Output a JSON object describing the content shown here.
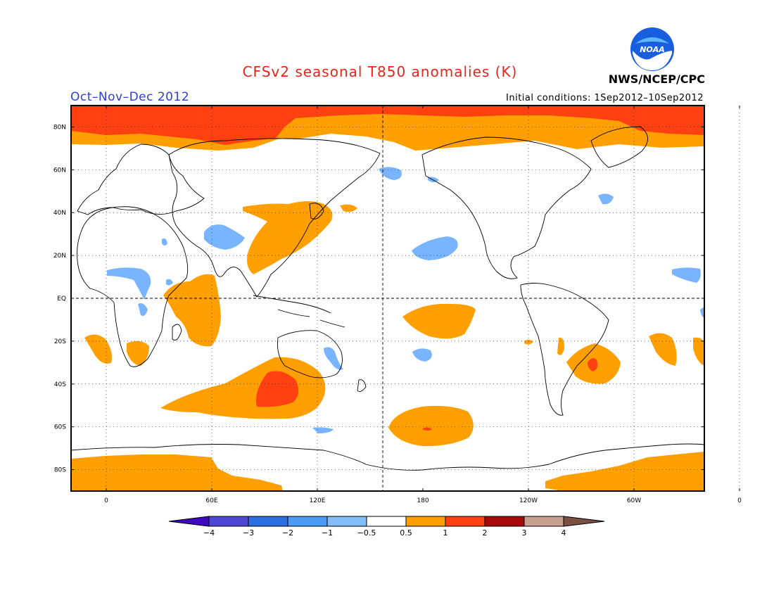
{
  "title": "CFSv2 seasonal T850 anomalies (K)",
  "period": "Oct–Nov–Dec 2012",
  "initial_conditions": "Initial conditions: 1Sep2012–10Sep2012",
  "agency": "NWS/NCEP/CPC",
  "logo": {
    "text": "NOAA",
    "icon": "noaa-logo-icon"
  },
  "colors": {
    "title": "#e8251a",
    "period": "#2a3fd8",
    "land_outline": "#000000",
    "level_0_5_to_1": "#ff9f00",
    "level_1_to_2": "#ff4010",
    "level_neg_0_5_to_neg_1": "#78b4ff"
  },
  "lat_labels": [
    "80N",
    "60N",
    "40N",
    "20N",
    "EQ",
    "20S",
    "40S",
    "60S",
    "80S"
  ],
  "lon_labels": [
    "0",
    "60E",
    "120E",
    "180",
    "120W",
    "60W",
    "0"
  ],
  "colorbar": {
    "labels": [
      "−4",
      "−3",
      "−2",
      "−1",
      "−0.5",
      "0.5",
      "1",
      "2",
      "3",
      "4"
    ],
    "colors": [
      "#3d0ac0",
      "#4f46d3",
      "#2a6ee0",
      "#4c9cf5",
      "#82bdf7",
      "#ffffff",
      "#ff9f00",
      "#ff4010",
      "#a50a0a",
      "#c8a090",
      "#7a5040"
    ]
  }
}
